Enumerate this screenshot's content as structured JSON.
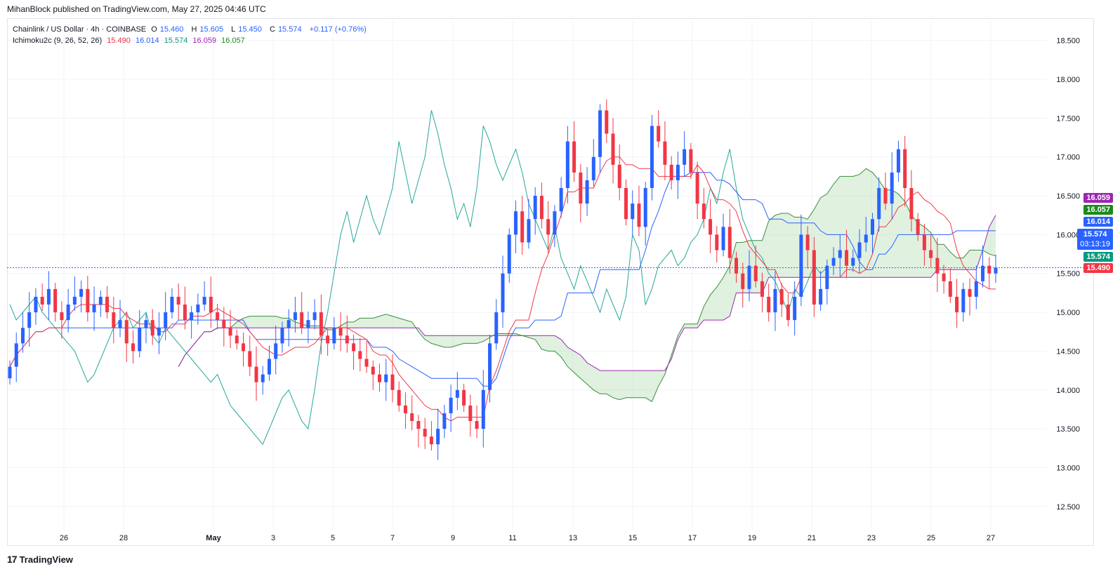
{
  "header": {
    "published": "MihanBlock published on TradingView.com, May 27, 2025 04:46 UTC"
  },
  "legend": {
    "symbol": "Chainlink / US Dollar · 4h · COINBASE",
    "o_label": "O",
    "o_value": "15.460",
    "h_label": "H",
    "h_value": "15.605",
    "l_label": "L",
    "l_value": "15.450",
    "c_label": "C",
    "c_value": "15.574",
    "change": "+0.117 (+0.76%)",
    "indicator": "Ichimoku2c (9, 26, 52, 26)",
    "ind_values": [
      "15.490",
      "16.014",
      "15.574",
      "16.059",
      "16.057"
    ]
  },
  "price_badges": {
    "purple": "16.059",
    "green": "16.057",
    "blue": "16.014",
    "current": "15.574",
    "countdown": "03:13:19",
    "teal": "15.574",
    "red": "15.490"
  },
  "footer": {
    "brand": "TradingView"
  },
  "colors": {
    "up": "#2962ff",
    "down": "#f23645",
    "conversion": "#f23645",
    "base": "#2962ff",
    "lagging": "#26a69a",
    "spanA": "#388e3c",
    "spanB": "#9c27b0",
    "cloud": "#a5d6a7"
  },
  "chart_data": {
    "type": "candlestick",
    "title": "Chainlink / US Dollar · 4h · COINBASE",
    "x_tick_labels": [
      "26",
      "28",
      "May",
      "3",
      "5",
      "7",
      "9",
      "11",
      "13",
      "15",
      "17",
      "19",
      "21",
      "23",
      "25",
      "27"
    ],
    "y_tick_labels": [
      "18.500",
      "18.000",
      "17.500",
      "17.000",
      "16.500",
      "16.000",
      "15.500",
      "15.000",
      "14.500",
      "14.000",
      "13.500",
      "13.000",
      "12.500"
    ],
    "ylim": [
      12.2,
      18.75
    ],
    "last_close": 15.574,
    "candles_close": [
      14.3,
      14.6,
      14.8,
      15.0,
      15.2,
      15.1,
      15.3,
      15.0,
      14.9,
      15.1,
      15.2,
      15.3,
      15.0,
      15.1,
      15.2,
      15.0,
      14.8,
      14.9,
      14.6,
      14.5,
      14.8,
      14.9,
      14.7,
      14.8,
      15.0,
      15.2,
      15.1,
      14.9,
      15.0,
      15.1,
      15.2,
      15.0,
      14.9,
      14.8,
      14.7,
      14.6,
      14.5,
      14.3,
      14.1,
      14.2,
      14.4,
      14.6,
      14.8,
      14.9,
      15.0,
      14.8,
      14.9,
      15.0,
      14.7,
      14.6,
      14.8,
      14.7,
      14.6,
      14.5,
      14.4,
      14.3,
      14.2,
      14.1,
      14.2,
      14.0,
      13.8,
      13.7,
      13.6,
      13.5,
      13.4,
      13.3,
      13.5,
      13.7,
      13.9,
      14.0,
      13.8,
      13.6,
      13.5,
      14.0,
      14.6,
      15.0,
      15.5,
      16.0,
      16.3,
      15.9,
      16.2,
      16.5,
      16.2,
      16.0,
      16.3,
      16.6,
      17.2,
      16.8,
      16.4,
      16.7,
      17.0,
      17.6,
      17.3,
      16.9,
      16.6,
      16.2,
      16.4,
      16.1,
      16.6,
      17.4,
      17.2,
      16.9,
      16.7,
      16.9,
      17.1,
      16.8,
      16.4,
      16.2,
      16.0,
      15.8,
      16.1,
      15.7,
      15.5,
      15.3,
      15.6,
      15.4,
      15.2,
      15.0,
      15.3,
      15.1,
      14.9,
      15.2,
      16.0,
      15.8,
      15.1,
      15.3,
      15.6,
      15.7,
      15.8,
      15.6,
      15.7,
      15.9,
      16.0,
      16.2,
      16.6,
      16.4,
      16.8,
      17.1,
      16.6,
      16.2,
      16.0,
      15.8,
      15.7,
      15.5,
      15.4,
      15.2,
      15.0,
      15.3,
      15.2,
      15.4,
      15.6,
      15.5,
      15.574
    ]
  }
}
